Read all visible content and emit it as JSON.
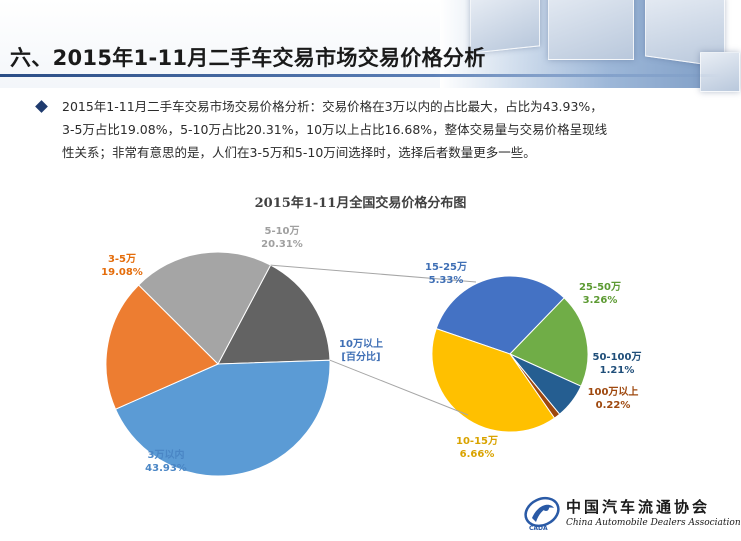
{
  "header": {
    "title": "六、2015年1-11月二手车交易市场交易价格分析"
  },
  "summary": {
    "lines": [
      "2015年1-11月二手车交易市场交易价格分析：交易价格在3万以内的占比最大，占比为43.93%，",
      "3-5万占比19.08%，5-10万占比20.31%，10万以上占比16.68%，整体交易量与交易价格呈现线",
      "性关系；非常有意思的是，人们在3-5万和5-10万间选择时，选择后者数量更多一些。"
    ]
  },
  "chart_data": {
    "type": "pie",
    "subtype": "pie-of-pie",
    "title": "2015年1-11月全国交易价格分布图",
    "main_pie": [
      {
        "label": "3万以内",
        "value": 43.93,
        "display": "43.93%",
        "color": "#5b9bd5"
      },
      {
        "label": "3-5万",
        "value": 19.08,
        "display": "19.08%",
        "color": "#ed7d31"
      },
      {
        "label": "5-10万",
        "value": 20.31,
        "display": "20.31%",
        "color": "#a5a5a5"
      },
      {
        "label": "10万以上",
        "value": 16.68,
        "display": "[百分比]",
        "color": "#636363"
      }
    ],
    "secondary_pie": [
      {
        "label": "15-25万",
        "value": 5.33,
        "display": "5.33%",
        "color": "#4472c4"
      },
      {
        "label": "25-50万",
        "value": 3.26,
        "display": "3.26%",
        "color": "#70ad47"
      },
      {
        "label": "50-100万",
        "value": 1.21,
        "display": "1.21%",
        "color": "#255e91"
      },
      {
        "label": "100万以上",
        "value": 0.22,
        "display": "0.22%",
        "color": "#9e480e"
      },
      {
        "label": "10-15万",
        "value": 6.66,
        "display": "6.66%",
        "color": "#ffc000"
      }
    ],
    "legend": "none"
  },
  "logo": {
    "name": "中国汽车流通协会",
    "english": "China Automobile Dealers Association",
    "abbr": "CADA"
  }
}
